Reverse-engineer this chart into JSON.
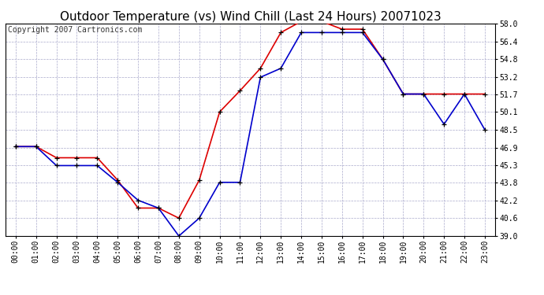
{
  "title": "Outdoor Temperature (vs) Wind Chill (Last 24 Hours) 20071023",
  "copyright": "Copyright 2007 Cartronics.com",
  "hours": [
    "00:00",
    "01:00",
    "02:00",
    "03:00",
    "04:00",
    "05:00",
    "06:00",
    "07:00",
    "08:00",
    "09:00",
    "10:00",
    "11:00",
    "12:00",
    "13:00",
    "14:00",
    "15:00",
    "16:00",
    "17:00",
    "18:00",
    "19:00",
    "20:00",
    "21:00",
    "22:00",
    "23:00"
  ],
  "temp_red": [
    47.0,
    47.0,
    46.0,
    46.0,
    46.0,
    44.0,
    41.5,
    41.5,
    40.6,
    44.0,
    50.1,
    52.0,
    54.0,
    57.2,
    58.2,
    58.2,
    57.5,
    57.5,
    54.8,
    51.7,
    51.7,
    51.7,
    51.7,
    51.7
  ],
  "wind_chill_blue": [
    47.0,
    47.0,
    45.3,
    45.3,
    45.3,
    43.8,
    42.2,
    41.5,
    39.0,
    40.6,
    43.8,
    43.8,
    53.2,
    54.0,
    57.2,
    57.2,
    57.2,
    57.2,
    54.8,
    51.7,
    51.7,
    49.0,
    51.7,
    48.5
  ],
  "red_color": "#dd0000",
  "blue_color": "#0000cc",
  "marker_color": "#000000",
  "bg_color": "#ffffff",
  "grid_color": "#aaaacc",
  "ylim_min": 39.0,
  "ylim_max": 58.0,
  "yticks": [
    39.0,
    40.6,
    42.2,
    43.8,
    45.3,
    46.9,
    48.5,
    50.1,
    51.7,
    53.2,
    54.8,
    56.4,
    58.0
  ],
  "title_fontsize": 11,
  "copyright_fontsize": 7,
  "tick_fontsize": 7,
  "figwidth": 6.9,
  "figheight": 3.75,
  "dpi": 100
}
